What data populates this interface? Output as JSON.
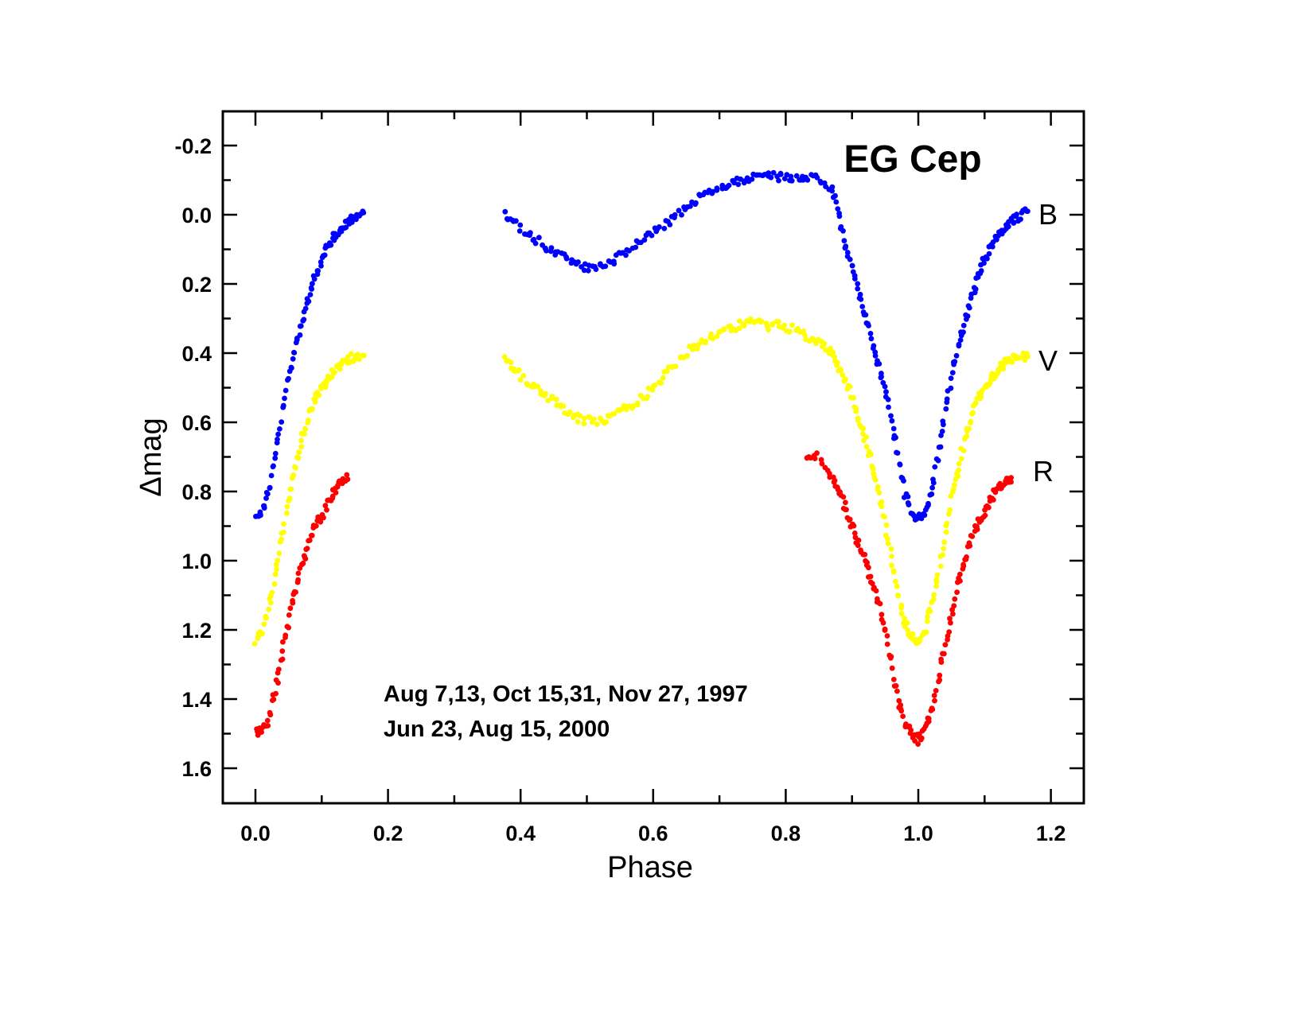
{
  "chart_data": {
    "type": "scatter",
    "title": "EG Cep",
    "xlabel": "Phase",
    "ylabel": "Δmag",
    "xlim": [
      -0.05,
      1.25
    ],
    "ylim": [
      1.7,
      -0.3
    ],
    "y_inverted": true,
    "grid": false,
    "xticks": [
      "0.0",
      "0.2",
      "0.4",
      "0.6",
      "0.8",
      "1.0",
      "1.2"
    ],
    "xtick_values": [
      0.0,
      0.2,
      0.4,
      0.6,
      0.8,
      1.0,
      1.2
    ],
    "yticks": [
      "-0.2",
      "0.0",
      "0.2",
      "0.4",
      "0.6",
      "0.8",
      "1.0",
      "1.2",
      "1.4",
      "1.6"
    ],
    "ytick_values": [
      -0.2,
      0.0,
      0.2,
      0.4,
      0.6,
      0.8,
      1.0,
      1.2,
      1.4,
      1.6
    ],
    "annotations": [
      "Aug 7,13, Oct 15,31, Nov 27, 1997",
      "Jun 23, Aug 15, 2000"
    ],
    "series": [
      {
        "name": "B",
        "color": "#0000ff",
        "curve": [
          [
            0.0,
            0.87
          ],
          [
            0.01,
            0.86
          ],
          [
            0.02,
            0.8
          ],
          [
            0.03,
            0.7
          ],
          [
            0.04,
            0.58
          ],
          [
            0.05,
            0.47
          ],
          [
            0.06,
            0.38
          ],
          [
            0.07,
            0.31
          ],
          [
            0.08,
            0.24
          ],
          [
            0.09,
            0.18
          ],
          [
            0.1,
            0.13
          ],
          [
            0.11,
            0.09
          ],
          [
            0.12,
            0.06
          ],
          [
            0.13,
            0.04
          ],
          [
            0.14,
            0.02
          ],
          [
            0.15,
            0.01
          ],
          [
            0.165,
            -0.01
          ],
          [
            0.375,
            0.0
          ],
          [
            0.39,
            0.02
          ],
          [
            0.41,
            0.05
          ],
          [
            0.43,
            0.08
          ],
          [
            0.45,
            0.11
          ],
          [
            0.47,
            0.13
          ],
          [
            0.49,
            0.15
          ],
          [
            0.51,
            0.15
          ],
          [
            0.53,
            0.14
          ],
          [
            0.55,
            0.12
          ],
          [
            0.57,
            0.09
          ],
          [
            0.59,
            0.07
          ],
          [
            0.61,
            0.04
          ],
          [
            0.63,
            0.01
          ],
          [
            0.65,
            -0.02
          ],
          [
            0.67,
            -0.05
          ],
          [
            0.69,
            -0.07
          ],
          [
            0.71,
            -0.09
          ],
          [
            0.73,
            -0.1
          ],
          [
            0.75,
            -0.11
          ],
          [
            0.77,
            -0.12
          ],
          [
            0.79,
            -0.11
          ],
          [
            0.81,
            -0.11
          ],
          [
            0.83,
            -0.11
          ],
          [
            0.85,
            -0.1
          ],
          [
            0.87,
            -0.07
          ],
          [
            0.88,
            0.01
          ],
          [
            0.89,
            0.09
          ],
          [
            0.9,
            0.15
          ],
          [
            0.91,
            0.22
          ],
          [
            0.92,
            0.29
          ],
          [
            0.93,
            0.36
          ],
          [
            0.94,
            0.44
          ],
          [
            0.95,
            0.51
          ],
          [
            0.96,
            0.6
          ],
          [
            0.97,
            0.7
          ],
          [
            0.98,
            0.81
          ],
          [
            0.99,
            0.86
          ],
          [
            1.0,
            0.88
          ],
          [
            1.01,
            0.86
          ],
          [
            1.02,
            0.8
          ],
          [
            1.03,
            0.7
          ],
          [
            1.04,
            0.58
          ],
          [
            1.05,
            0.47
          ],
          [
            1.06,
            0.38
          ],
          [
            1.07,
            0.31
          ],
          [
            1.08,
            0.24
          ],
          [
            1.09,
            0.18
          ],
          [
            1.1,
            0.13
          ],
          [
            1.11,
            0.09
          ],
          [
            1.12,
            0.06
          ],
          [
            1.13,
            0.04
          ],
          [
            1.14,
            0.02
          ],
          [
            1.15,
            0.01
          ],
          [
            1.165,
            -0.01
          ]
        ]
      },
      {
        "name": "V",
        "color": "#ffff00",
        "curve": [
          [
            0.0,
            1.23
          ],
          [
            0.01,
            1.21
          ],
          [
            0.02,
            1.13
          ],
          [
            0.03,
            1.04
          ],
          [
            0.04,
            0.93
          ],
          [
            0.05,
            0.82
          ],
          [
            0.06,
            0.73
          ],
          [
            0.07,
            0.65
          ],
          [
            0.08,
            0.58
          ],
          [
            0.09,
            0.53
          ],
          [
            0.1,
            0.5
          ],
          [
            0.11,
            0.47
          ],
          [
            0.12,
            0.45
          ],
          [
            0.13,
            0.43
          ],
          [
            0.14,
            0.42
          ],
          [
            0.15,
            0.41
          ],
          [
            0.165,
            0.41
          ],
          [
            0.375,
            0.42
          ],
          [
            0.39,
            0.45
          ],
          [
            0.41,
            0.48
          ],
          [
            0.43,
            0.51
          ],
          [
            0.45,
            0.54
          ],
          [
            0.47,
            0.57
          ],
          [
            0.49,
            0.59
          ],
          [
            0.51,
            0.6
          ],
          [
            0.53,
            0.59
          ],
          [
            0.55,
            0.57
          ],
          [
            0.57,
            0.55
          ],
          [
            0.59,
            0.52
          ],
          [
            0.61,
            0.48
          ],
          [
            0.63,
            0.44
          ],
          [
            0.65,
            0.4
          ],
          [
            0.67,
            0.37
          ],
          [
            0.69,
            0.35
          ],
          [
            0.71,
            0.33
          ],
          [
            0.73,
            0.32
          ],
          [
            0.75,
            0.31
          ],
          [
            0.77,
            0.32
          ],
          [
            0.79,
            0.32
          ],
          [
            0.81,
            0.33
          ],
          [
            0.83,
            0.35
          ],
          [
            0.85,
            0.37
          ],
          [
            0.87,
            0.4
          ],
          [
            0.88,
            0.44
          ],
          [
            0.89,
            0.48
          ],
          [
            0.9,
            0.53
          ],
          [
            0.91,
            0.59
          ],
          [
            0.92,
            0.65
          ],
          [
            0.93,
            0.72
          ],
          [
            0.94,
            0.8
          ],
          [
            0.95,
            0.89
          ],
          [
            0.96,
            1.0
          ],
          [
            0.97,
            1.1
          ],
          [
            0.98,
            1.18
          ],
          [
            0.99,
            1.22
          ],
          [
            1.0,
            1.24
          ],
          [
            1.01,
            1.21
          ],
          [
            1.02,
            1.13
          ],
          [
            1.03,
            1.04
          ],
          [
            1.04,
            0.93
          ],
          [
            1.05,
            0.82
          ],
          [
            1.06,
            0.73
          ],
          [
            1.07,
            0.65
          ],
          [
            1.08,
            0.58
          ],
          [
            1.09,
            0.53
          ],
          [
            1.1,
            0.5
          ],
          [
            1.11,
            0.47
          ],
          [
            1.12,
            0.45
          ],
          [
            1.13,
            0.43
          ],
          [
            1.14,
            0.42
          ],
          [
            1.15,
            0.41
          ],
          [
            1.165,
            0.41
          ]
        ]
      },
      {
        "name": "R",
        "color": "#ff0000",
        "curve": [
          [
            0.0,
            1.5
          ],
          [
            0.01,
            1.49
          ],
          [
            0.02,
            1.46
          ],
          [
            0.03,
            1.37
          ],
          [
            0.04,
            1.27
          ],
          [
            0.05,
            1.17
          ],
          [
            0.06,
            1.08
          ],
          [
            0.07,
            1.01
          ],
          [
            0.08,
            0.95
          ],
          [
            0.09,
            0.9
          ],
          [
            0.1,
            0.87
          ],
          [
            0.11,
            0.83
          ],
          [
            0.12,
            0.8
          ],
          [
            0.13,
            0.77
          ],
          [
            0.14,
            0.76
          ],
          [
            0.83,
            0.69
          ],
          [
            0.85,
            0.7
          ],
          [
            0.87,
            0.76
          ],
          [
            0.88,
            0.8
          ],
          [
            0.89,
            0.85
          ],
          [
            0.9,
            0.9
          ],
          [
            0.91,
            0.95
          ],
          [
            0.92,
            1.0
          ],
          [
            0.93,
            1.06
          ],
          [
            0.94,
            1.12
          ],
          [
            0.95,
            1.2
          ],
          [
            0.96,
            1.3
          ],
          [
            0.97,
            1.41
          ],
          [
            0.98,
            1.47
          ],
          [
            0.99,
            1.5
          ],
          [
            1.0,
            1.52
          ],
          [
            1.01,
            1.49
          ],
          [
            1.02,
            1.44
          ],
          [
            1.03,
            1.35
          ],
          [
            1.04,
            1.25
          ],
          [
            1.05,
            1.15
          ],
          [
            1.06,
            1.07
          ],
          [
            1.07,
            1.0
          ],
          [
            1.08,
            0.94
          ],
          [
            1.09,
            0.89
          ],
          [
            1.1,
            0.86
          ],
          [
            1.11,
            0.82
          ],
          [
            1.12,
            0.79
          ],
          [
            1.13,
            0.77
          ],
          [
            1.14,
            0.76
          ]
        ]
      }
    ]
  }
}
